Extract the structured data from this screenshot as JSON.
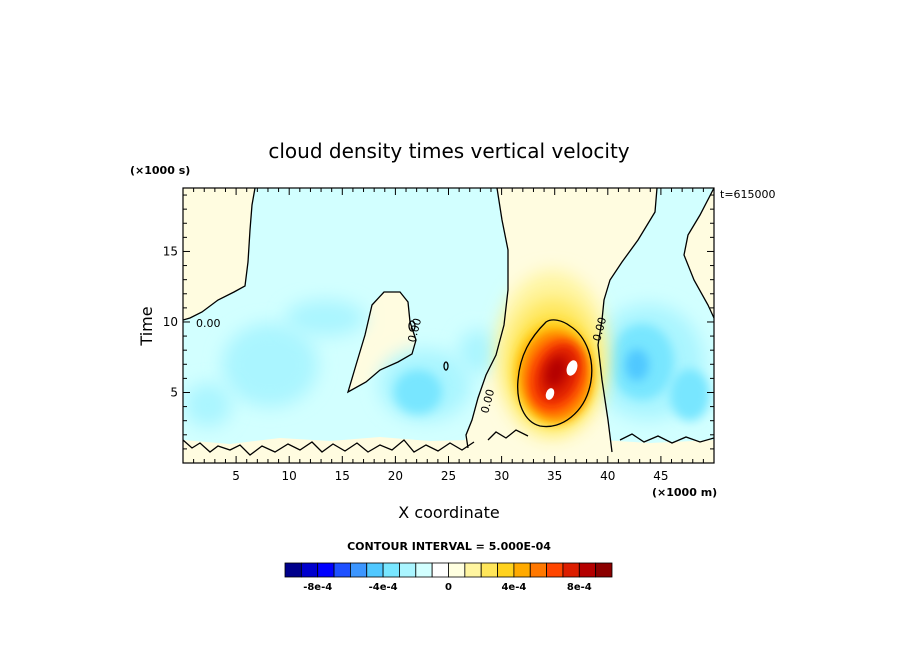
{
  "chart_data": {
    "type": "heatmap",
    "title": "cloud density times vertical velocity",
    "xlabel": "X coordinate",
    "ylabel": "Time",
    "x_unit_label": "(×1000 m)",
    "y_unit_label": "(×1000 s)",
    "time_stamp": "t=615000",
    "xlim": [
      0,
      50
    ],
    "ylim": [
      0,
      19.5
    ],
    "x_ticks": [
      5,
      10,
      15,
      20,
      25,
      30,
      35,
      40,
      45
    ],
    "y_ticks": [
      5,
      10,
      15
    ],
    "contour_labels": [
      "0.00",
      "0.00",
      "0.00",
      "0.00"
    ],
    "contour_interval_label": "CONTOUR INTERVAL = 5.000E-04",
    "colorbar": {
      "tick_labels": [
        "-8e-4",
        "-4e-4",
        "0",
        "4e-4",
        "8e-4"
      ],
      "tick_values": [
        -0.0008,
        -0.0004,
        0,
        0.0004,
        0.0008
      ],
      "min": -0.001,
      "max": 0.001,
      "colors": [
        "#00008b",
        "#0000cd",
        "#0000ff",
        "#1e50ff",
        "#3c96ff",
        "#50c8ff",
        "#78e6ff",
        "#aaf5ff",
        "#d2ffff",
        "#ffffff",
        "#ffffe0",
        "#fff5a0",
        "#ffe65a",
        "#ffd21e",
        "#ffaa00",
        "#ff7800",
        "#ff4600",
        "#dc1e00",
        "#b40000",
        "#8b0000"
      ]
    },
    "features": [
      {
        "kind": "positive",
        "x": 35.5,
        "y": 6.5,
        "peak": 0.0012
      },
      {
        "kind": "positive",
        "x": 34.2,
        "y": 4.8,
        "peak": 0.0011
      },
      {
        "kind": "positive",
        "x": 34.5,
        "y": 9.5,
        "peak": 0.0004
      },
      {
        "kind": "negative",
        "x": 42.5,
        "y": 6.0,
        "peak": -0.0003
      },
      {
        "kind": "negative",
        "x": 44.0,
        "y": 5.0,
        "peak": -0.00025
      },
      {
        "kind": "negative",
        "x": 22.5,
        "y": 5.5,
        "peak": -0.00022
      },
      {
        "kind": "negative",
        "x": 10.0,
        "y": 8.5,
        "peak": -0.00012
      },
      {
        "kind": "negative",
        "x": 17.0,
        "y": 9.0,
        "peak": -0.0001
      },
      {
        "kind": "negative",
        "x": 2.0,
        "y": 4.5,
        "peak": -8e-05
      },
      {
        "kind": "negative",
        "x": 27.5,
        "y": 7.5,
        "peak": -0.00012
      }
    ]
  }
}
